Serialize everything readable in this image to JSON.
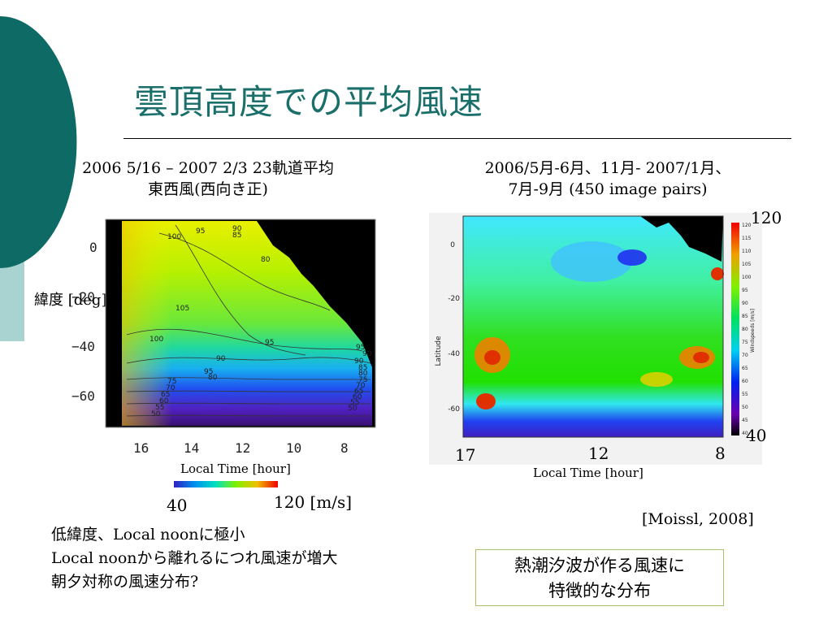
{
  "slide": {
    "title": "雲頂高度での平均風速",
    "left_caption": [
      "2006 5/16 – 2007 2/3  23軌道平均",
      "東西風(西向き正)"
    ],
    "right_caption": [
      "2006/5月-6月、11月- 2007/1月、",
      "7月-9月 (450 image pairs)"
    ],
    "citation": "[Moissl, 2008]",
    "notes": [
      "低緯度、Local noonに極小",
      "Local noonから離れるにつれ風速が増大",
      "朝夕対称の風速分布?"
    ],
    "box_lines": [
      "熱潮汐波が作る風速に",
      "特徴的な分布"
    ]
  },
  "chart_data": [
    {
      "type": "heatmap",
      "ylabel": "緯度 [deg]",
      "xlabel": "Local Time [hour]",
      "x_ticks": [
        "16",
        "14",
        "12",
        "10",
        "8"
      ],
      "y_ticks": [
        "0",
        "−20",
        "−40",
        "−60"
      ],
      "contour_labels": [
        "100",
        "95",
        "90",
        "105",
        "100",
        "95",
        "90",
        "95",
        "80",
        "75",
        "70",
        "65",
        "60",
        "55",
        "50",
        "90",
        "85",
        "80",
        "75",
        "70",
        "65",
        "60",
        "55",
        "50",
        "95",
        "90",
        "85",
        "80"
      ],
      "colorbar": {
        "min_label": "40",
        "max_label": "120 [m/s]",
        "range": [
          40,
          120
        ]
      }
    },
    {
      "type": "heatmap",
      "ylabel": "Latitude",
      "xlabel": "Local Time [hour]",
      "x_ticks": [
        "17",
        "12",
        "8"
      ],
      "y_ticks": [
        "0",
        "-20",
        "-40",
        "-60"
      ],
      "colorbar": {
        "ticks": [
          "120",
          "115",
          "110",
          "105",
          "100",
          "95",
          "90",
          "85",
          "80",
          "75",
          "70",
          "65",
          "60",
          "55",
          "50",
          "45",
          "40"
        ],
        "label": "Windspeeds [m/s]",
        "max_label": "120",
        "min_label": "40",
        "range": [
          40,
          120
        ]
      }
    }
  ]
}
